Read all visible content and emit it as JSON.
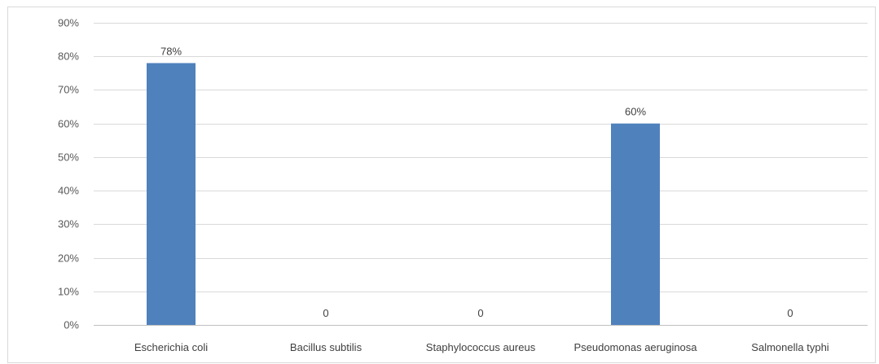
{
  "chart_data": {
    "type": "bar",
    "categories": [
      "Escherichia coli",
      "Bacillus subtilis",
      "Staphylococcus aureus",
      "Pseudomonas aeruginosa",
      "Salmonella typhi"
    ],
    "values": [
      78,
      0,
      0,
      60,
      0
    ],
    "data_labels": [
      "78%",
      "0",
      "0",
      "60%",
      "0"
    ],
    "yticks": [
      "0%",
      "10%",
      "20%",
      "30%",
      "40%",
      "50%",
      "60%",
      "70%",
      "80%",
      "90%"
    ],
    "ylim": [
      0,
      90
    ],
    "grid": true,
    "legend": "none",
    "bar_color": "#4f81bd"
  }
}
